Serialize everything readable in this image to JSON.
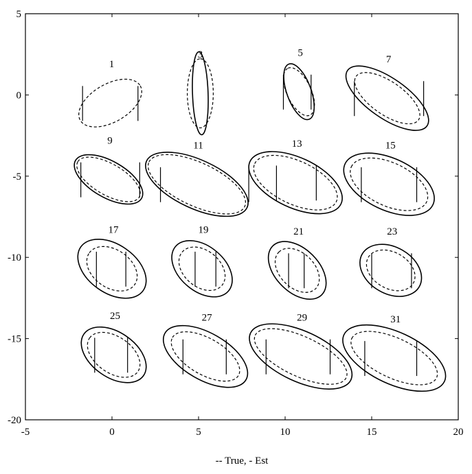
{
  "chart_data": {
    "type": "scatter",
    "xlabel": "-- True, - Est",
    "xlim": [
      -5,
      20
    ],
    "ylim": [
      -20,
      5
    ],
    "xticks": [
      "-5",
      "0",
      "5",
      "10",
      "15",
      "20"
    ],
    "yticks": [
      "5",
      "0",
      "-5",
      "-10",
      "-15",
      "-20"
    ],
    "grid": false,
    "items": [
      {
        "label": "1",
        "cx": -0.1,
        "cy": -0.5,
        "true_rx": null,
        "true_ry": null,
        "est_rx": 2.0,
        "est_ry": 1.1,
        "est_angle": 30,
        "bars": [
          -1.7,
          1.5
        ]
      },
      {
        "label": "3",
        "cx": 5.1,
        "cy": 0.1,
        "true_rx": 2.4,
        "true_ry": 0.45,
        "true_angle": 92,
        "est_rx": 2.0,
        "est_ry": 0.75,
        "est_angle": 90,
        "bars": []
      },
      {
        "label": "5",
        "cx": 10.8,
        "cy": 0.2,
        "true_rx": 1.7,
        "true_ry": 0.7,
        "true_angle": 110,
        "est_rx": 1.5,
        "est_ry": 0.7,
        "est_angle": 115,
        "bars": [
          9.9,
          11.5
        ]
      },
      {
        "label": "7",
        "cx": 15.9,
        "cy": -0.2,
        "true_rx": 2.8,
        "true_ry": 1.15,
        "true_angle": 145,
        "est_rx": 2.2,
        "est_ry": 0.95,
        "est_angle": 145,
        "bars": [
          14.0,
          18.0
        ]
      },
      {
        "label": "9",
        "cx": -0.2,
        "cy": -5.2,
        "true_rx": 2.2,
        "true_ry": 1.05,
        "true_angle": 150,
        "est_rx": 2.05,
        "est_ry": 0.9,
        "est_angle": 150,
        "bars": [
          -1.8,
          1.6
        ]
      },
      {
        "label": "11",
        "cx": 4.9,
        "cy": -5.5,
        "true_rx": 3.2,
        "true_ry": 1.4,
        "true_angle": 155,
        "est_rx": 3.05,
        "est_ry": 1.25,
        "est_angle": 155,
        "bars": [
          2.8,
          7.9
        ]
      },
      {
        "label": "13",
        "cx": 10.6,
        "cy": -5.4,
        "true_rx": 2.9,
        "true_ry": 1.45,
        "true_angle": 155,
        "est_rx": 2.6,
        "est_ry": 1.25,
        "est_angle": 155,
        "bars": [
          9.5,
          11.8
        ]
      },
      {
        "label": "15",
        "cx": 16.0,
        "cy": -5.5,
        "true_rx": 2.8,
        "true_ry": 1.5,
        "true_angle": 155,
        "est_rx": 2.4,
        "est_ry": 1.25,
        "est_angle": 155,
        "bars": [
          14.4,
          17.6
        ]
      },
      {
        "label": "17",
        "cx": 0.0,
        "cy": -10.7,
        "true_rx": 2.2,
        "true_ry": 1.4,
        "true_angle": 145,
        "est_rx": 1.6,
        "est_ry": 1.1,
        "est_angle": 145,
        "bars": [
          -0.9,
          0.8
        ]
      },
      {
        "label": "19",
        "cx": 5.2,
        "cy": -10.7,
        "true_rx": 2.0,
        "true_ry": 1.3,
        "true_angle": 140,
        "est_rx": 1.5,
        "est_ry": 1.05,
        "est_angle": 140,
        "bars": [
          4.8,
          6.0
        ]
      },
      {
        "label": "21",
        "cx": 10.7,
        "cy": -10.8,
        "true_rx": 2.0,
        "true_ry": 1.25,
        "true_angle": 135,
        "est_rx": 1.5,
        "est_ry": 1.0,
        "est_angle": 135,
        "bars": [
          10.2,
          11.1
        ]
      },
      {
        "label": "23",
        "cx": 16.1,
        "cy": -10.8,
        "true_rx": 1.9,
        "true_ry": 1.35,
        "true_angle": 150,
        "est_rx": 1.5,
        "est_ry": 1.05,
        "est_angle": 150,
        "bars": [
          15.0,
          17.3
        ]
      },
      {
        "label": "25",
        "cx": 0.1,
        "cy": -16.0,
        "true_rx": 2.1,
        "true_ry": 1.3,
        "true_angle": 145,
        "est_rx": 1.7,
        "est_ry": 1.05,
        "est_angle": 145,
        "bars": [
          -1.0,
          0.9
        ]
      },
      {
        "label": "27",
        "cx": 5.4,
        "cy": -16.1,
        "true_rx": 2.7,
        "true_ry": 1.35,
        "true_angle": 150,
        "est_rx": 2.2,
        "est_ry": 1.05,
        "est_angle": 150,
        "bars": [
          4.1,
          6.6
        ]
      },
      {
        "label": "29",
        "cx": 10.9,
        "cy": -16.1,
        "true_rx": 3.2,
        "true_ry": 1.45,
        "true_angle": 155,
        "est_rx": 2.9,
        "est_ry": 1.15,
        "est_angle": 155,
        "bars": [
          8.9,
          12.6
        ]
      },
      {
        "label": "31",
        "cx": 16.3,
        "cy": -16.2,
        "true_rx": 3.2,
        "true_ry": 1.5,
        "true_angle": 155,
        "est_rx": 2.7,
        "est_ry": 1.15,
        "est_angle": 155,
        "bars": [
          14.6,
          17.6
        ]
      }
    ]
  }
}
